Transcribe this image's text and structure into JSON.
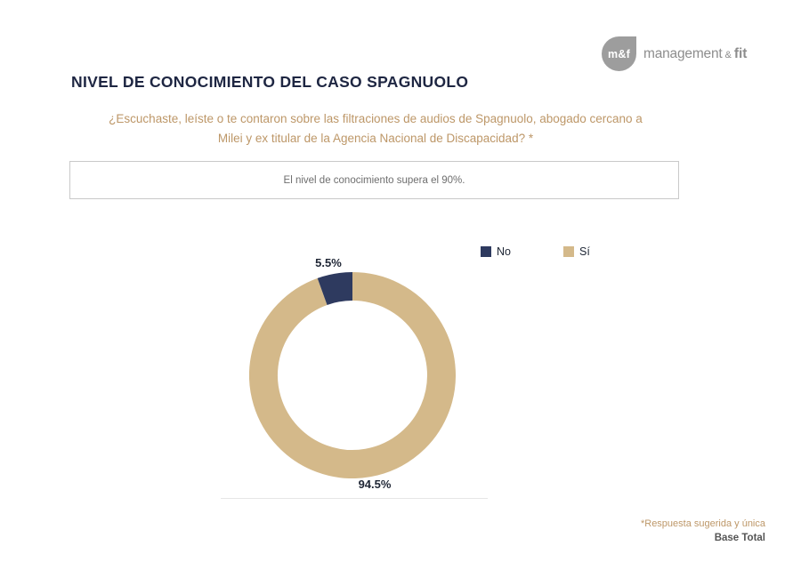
{
  "brand": {
    "mark_text": "m&f",
    "name_main": "management",
    "name_amp": "&",
    "name_suffix": "fit"
  },
  "header": {
    "title": "NIVEL DE CONOCIMIENTO DEL CASO SPAGNUOLO",
    "question_line1": "¿Escuchaste, leíste o te contaron sobre las filtraciones de audios de Spagnuolo, abogado cercano a",
    "question_line2": "Milei y ex titular de la Agencia Nacional de Discapacidad? *"
  },
  "insight_box": {
    "text": "El nivel de conocimiento supera el 90%."
  },
  "chart_data": {
    "type": "pie",
    "subtype": "donut",
    "categories": [
      "No",
      "Sí"
    ],
    "values": [
      5.5,
      94.5
    ],
    "value_labels": [
      "5.5%",
      "94.5%"
    ],
    "colors": [
      "#2e3a5f",
      "#d4b98a"
    ],
    "legend_position": "top",
    "draw": {
      "start_angle_deg": 0,
      "clockwise": true,
      "order": [
        1,
        0
      ]
    }
  },
  "footnotes": {
    "note": "*Respuesta sugerida y única",
    "base": "Base Total"
  },
  "colors": {
    "title_navy": "#1e2642",
    "accent_tan": "#bd9768",
    "slice_no": "#2e3a5f",
    "slice_si": "#d4b98a"
  }
}
